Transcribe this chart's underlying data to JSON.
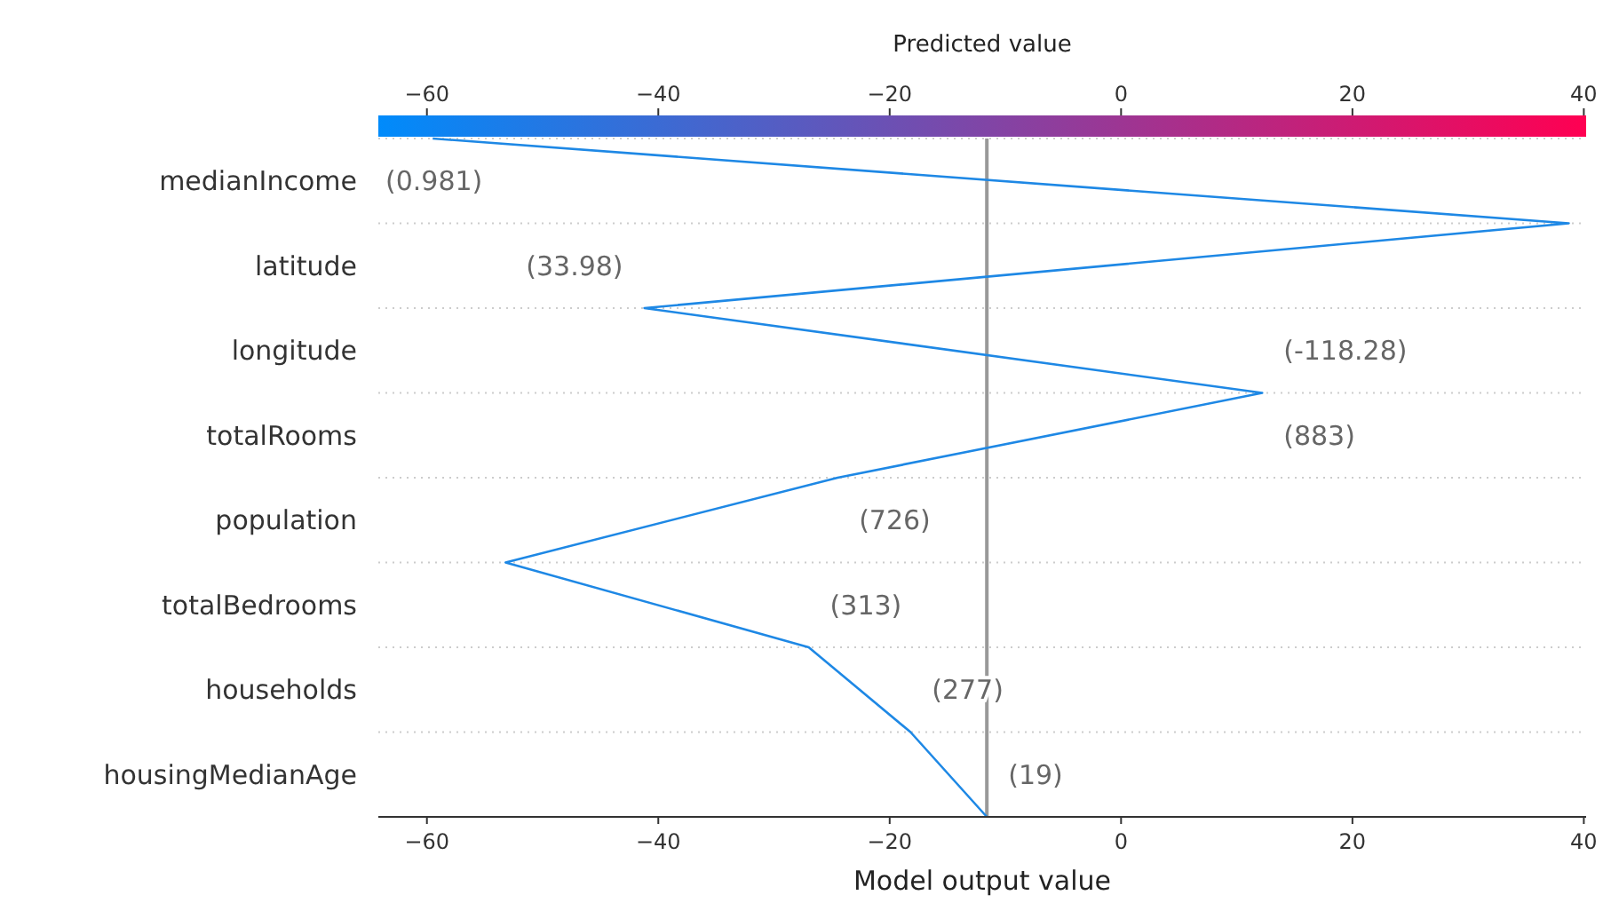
{
  "chart_data": {
    "type": "line",
    "orientation": "horizontal",
    "xlabel": "Model output value",
    "clabel": "Predicted value",
    "clim": [
      -64.2,
      40.2
    ],
    "cticks": [
      -60,
      -40,
      -20,
      0,
      20,
      40
    ],
    "colors": [
      "#008bfb",
      "#ff0052"
    ],
    "xlim": [
      -64.2,
      40.2
    ],
    "xticks": [
      -60,
      -40,
      -20,
      0,
      20,
      40
    ],
    "categories": [
      null,
      "medianIncome",
      null,
      "latitude",
      null,
      "longitude",
      null,
      "totalRooms",
      null,
      "population",
      null,
      "totalBedrooms",
      null,
      "households",
      null,
      "housingMedianAge",
      null
    ],
    "grid": "y",
    "line_style": "solid",
    "series": [
      {
        "color": "#1e88e5",
        "values": [
          -59.5,
          null,
          38.7,
          null,
          -41.2,
          null,
          12.2,
          null,
          -24.5,
          null,
          -53.2,
          null,
          -27.0,
          null,
          -18.2,
          null,
          -11.6
        ]
      }
    ],
    "ref_lines": [
      {
        "axis": "x",
        "value": -11.6,
        "color": "#999999"
      }
    ],
    "annotations": [
      "(0.981)",
      "(33.98)",
      "(-118.28)",
      "(883)",
      "(726)",
      "(313)",
      "(277)",
      "(19)"
    ]
  }
}
